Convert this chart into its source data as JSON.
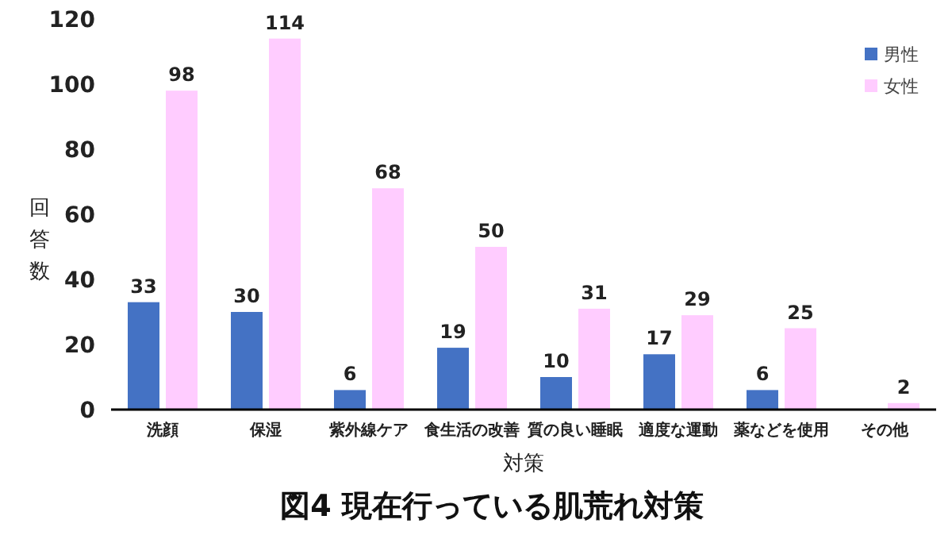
{
  "chart_data": {
    "type": "bar",
    "title": "図4 現在行っている肌荒れ対策",
    "xlabel": "対策",
    "ylabel": "回答数",
    "categories": [
      "洗顔",
      "保湿",
      "紫外線ケア",
      "食生活の改善",
      "質の良い睡眠",
      "適度な運動",
      "薬などを使用",
      "その他"
    ],
    "series": [
      {
        "name": "男性",
        "color": "#4472c4",
        "values": [
          33,
          30,
          6,
          19,
          10,
          17,
          6,
          null
        ]
      },
      {
        "name": "女性",
        "color": "#ffccff",
        "values": [
          98,
          114,
          68,
          50,
          31,
          29,
          25,
          2
        ]
      }
    ],
    "ylim": [
      0,
      120
    ],
    "yticks": [
      0,
      20,
      40,
      60,
      80,
      100,
      120
    ],
    "legend": "top right",
    "data_labels": true
  }
}
